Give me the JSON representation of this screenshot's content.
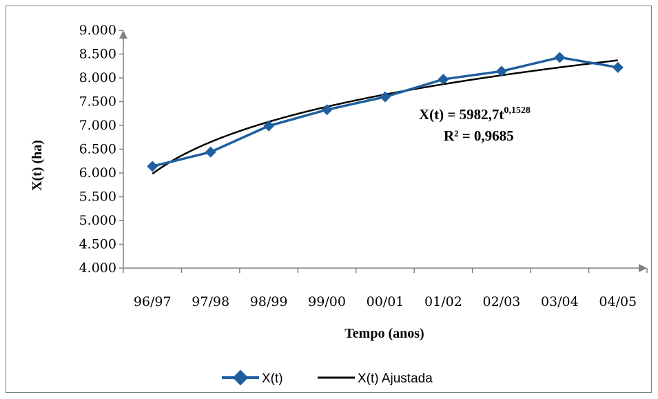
{
  "chart_data": {
    "type": "line",
    "categories": [
      "96/97",
      "97/98",
      "98/99",
      "99/00",
      "00/01",
      "01/02",
      "02/03",
      "03/04",
      "04/05"
    ],
    "series": [
      {
        "name": "X(t)",
        "values": [
          6140,
          6440,
          6990,
          7330,
          7600,
          7970,
          8140,
          8430,
          8220
        ],
        "color": "#1f5f9f",
        "marker": "diamond"
      },
      {
        "name": "X(t) Ajustada",
        "fit": {
          "a": 5982.7,
          "b": 0.1528
        },
        "color": "#000000",
        "marker": "none"
      }
    ],
    "yticks": [
      "9.000",
      "8.500",
      "8.000",
      "7.500",
      "7.000",
      "6.500",
      "6.000",
      "5.500",
      "5.000",
      "4.500",
      "4.000"
    ],
    "ylim": [
      4000,
      9000
    ],
    "xlabel": "Tempo (anos)",
    "ylabel": "X(t)  (ha)",
    "equation": {
      "main": "X(t) = 5982,7t",
      "exponent": "0,1528",
      "r2": "R² = 0,9685"
    },
    "legend": {
      "position": "bottom",
      "items": [
        "X(t)",
        "X(t) Ajustada"
      ]
    },
    "grid": false
  }
}
